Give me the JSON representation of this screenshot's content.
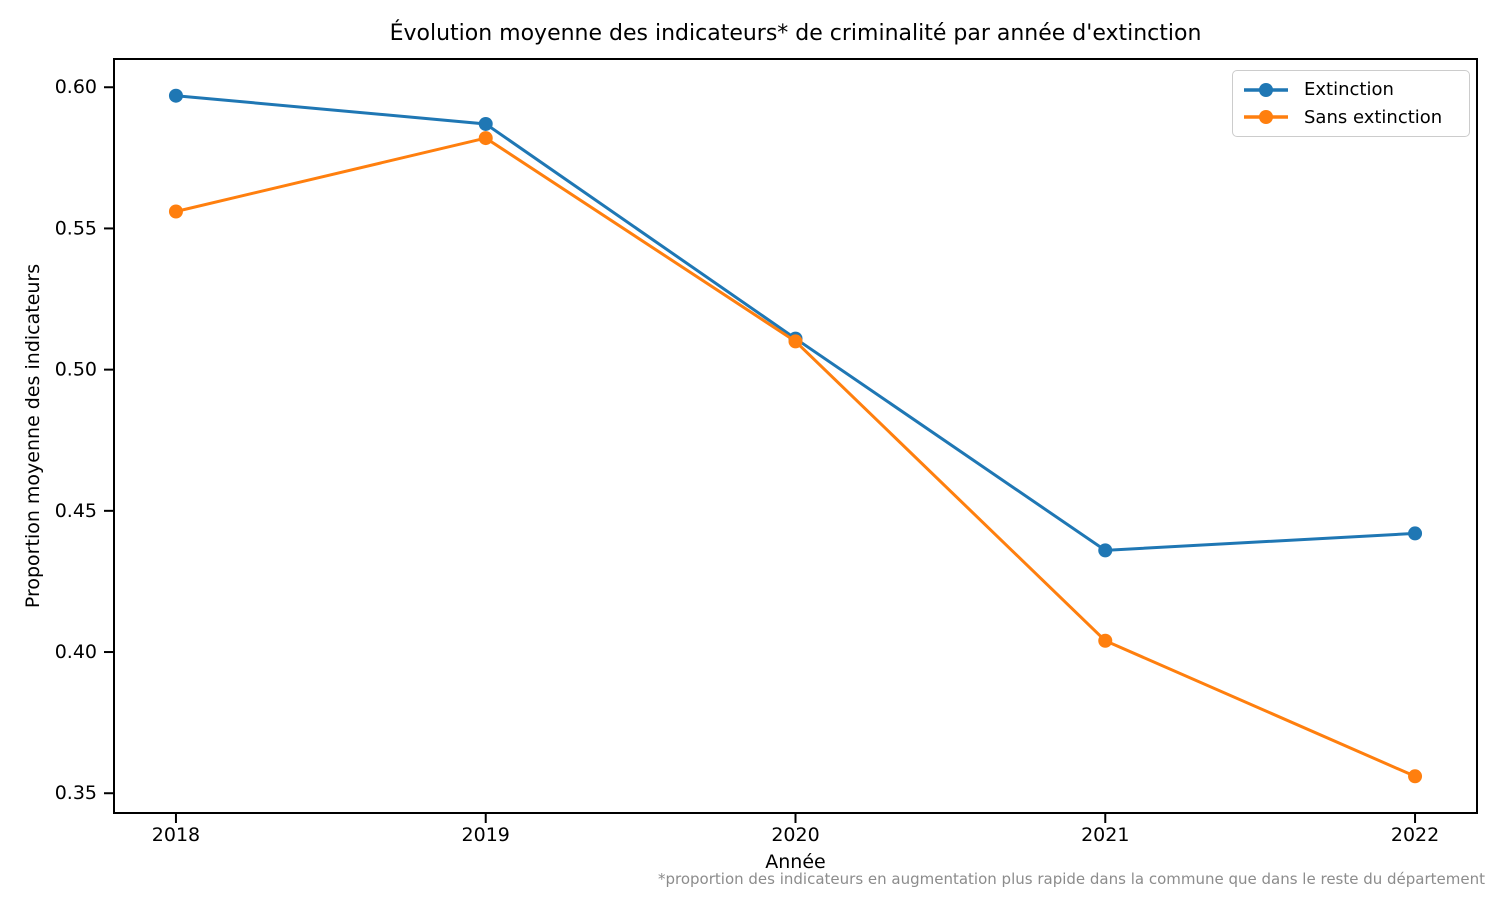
{
  "chart_data": {
    "type": "line",
    "title": "Évolution moyenne des indicateurs* de criminalité par année d'extinction",
    "xlabel": "Année",
    "ylabel": "Proportion moyenne des indicateurs",
    "annotation": "*proportion des indicateurs en augmentation plus rapide dans la commune que dans le reste du département",
    "x": [
      2018,
      2019,
      2020,
      2021,
      2022
    ],
    "xtick_labels": [
      "2018",
      "2019",
      "2020",
      "2021",
      "2022"
    ],
    "yticks": [
      0.35,
      0.4,
      0.45,
      0.5,
      0.55,
      0.6
    ],
    "ytick_labels": [
      "0.35",
      "0.40",
      "0.45",
      "0.50",
      "0.55",
      "0.60"
    ],
    "xlim": [
      2017.8,
      2022.2
    ],
    "ylim": [
      0.343,
      0.61
    ],
    "grid": false,
    "legend_position": "upper right",
    "series": [
      {
        "name": "Extinction",
        "color": "#1f77b4",
        "marker": "o",
        "values": [
          0.597,
          0.587,
          0.511,
          0.436,
          0.442
        ]
      },
      {
        "name": "Sans extinction",
        "color": "#ff7f0e",
        "marker": "o",
        "values": [
          0.556,
          0.582,
          0.51,
          0.404,
          0.356
        ]
      }
    ]
  },
  "style": {
    "spine_color": "#000000",
    "tick_label_color": "#000000",
    "footnote_color": "#8c8c8c",
    "legend_border_color": "#cccccc",
    "background": "#ffffff"
  }
}
